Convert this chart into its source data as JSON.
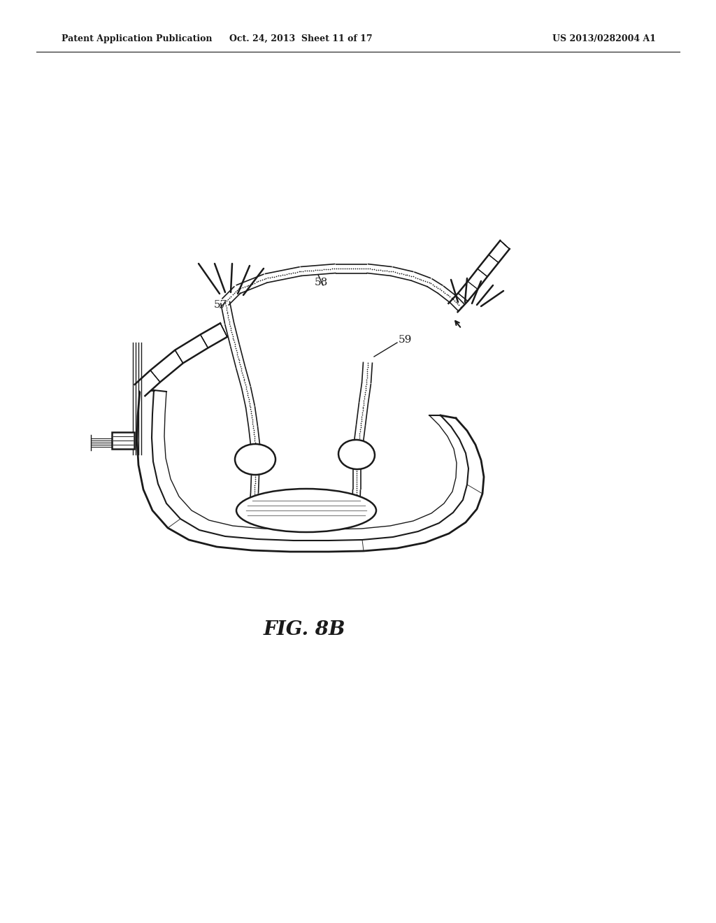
{
  "header_left": "Patent Application Publication",
  "header_center": "Oct. 24, 2013  Sheet 11 of 17",
  "header_right": "US 2013/0282004 A1",
  "fig_label": "FIG. 8B",
  "background": "#ffffff",
  "ink": "#1a1a1a"
}
